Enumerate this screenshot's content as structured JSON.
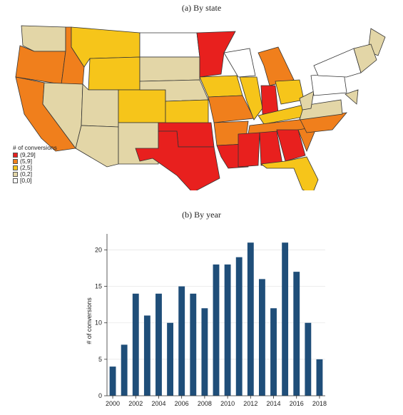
{
  "panel_a": {
    "title": "(a) By state",
    "legend": {
      "title": "# of conversions",
      "items": [
        {
          "label": "(9,29]",
          "color": "#e8201e"
        },
        {
          "label": "(5,9]",
          "color": "#f07f1c"
        },
        {
          "label": "(2,5]",
          "color": "#f6c51a"
        },
        {
          "label": "(0,2]",
          "color": "#e3d6a7"
        },
        {
          "label": "[0,0]",
          "color": "#ffffff"
        }
      ]
    }
  },
  "panel_b": {
    "title": "(b) By year"
  },
  "chart_data": [
    {
      "type": "choropleth",
      "title": "(a) By state",
      "legend_title": "# of conversions",
      "bins": [
        "(9,29]",
        "(5,9]",
        "(2,5]",
        "(0,2]",
        "[0,0]"
      ],
      "bin_colors": [
        "#e8201e",
        "#f07f1c",
        "#f6c51a",
        "#e3d6a7",
        "#ffffff"
      ],
      "states": {
        "WA": "(0,2]",
        "OR": "(5,9]",
        "CA": "(5,9]",
        "ID": "(5,9]",
        "NV": "(0,2]",
        "MT": "(2,5]",
        "WY": "(2,5]",
        "UT": "(0,2]",
        "AZ": "(0,2]",
        "CO": "(2,5]",
        "NM": "(0,2]",
        "ND": "[0,0]",
        "SD": "(0,2]",
        "NE": "(0,2]",
        "KS": "(2,5]",
        "OK": "(9,29]",
        "TX": "(9,29]",
        "MN": "(9,29]",
        "IA": "(2,5]",
        "MO": "(5,9]",
        "AR": "(5,9]",
        "LA": "(9,29]",
        "WI": "[0,0]",
        "IL": "(2,5]",
        "MI": "(5,9]",
        "IN": "(9,29]",
        "OH": "(2,5]",
        "KY": "(2,5]",
        "TN": "(5,9]",
        "MS": "(9,29]",
        "AL": "(9,29]",
        "GA": "(9,29]",
        "FL": "(2,5]",
        "SC": "(5,9]",
        "NC": "(5,9]",
        "VA": "(0,2]",
        "WV": "(0,2]",
        "PA": "[0,0]",
        "NY": "[0,0]",
        "ME": "(0,2]",
        "NE_states": "(0,2]",
        "MD": "(0,2]"
      }
    },
    {
      "type": "bar",
      "title": "(b) By year",
      "xlabel": "",
      "ylabel": "# of conversions",
      "color": "#1f4e79",
      "ylim": [
        0,
        22
      ],
      "yticks": [
        0,
        5,
        10,
        15,
        20
      ],
      "xticks": [
        2000,
        2002,
        2004,
        2006,
        2008,
        2010,
        2012,
        2014,
        2016,
        2018
      ],
      "categories": [
        2000,
        2001,
        2002,
        2003,
        2004,
        2005,
        2006,
        2007,
        2008,
        2009,
        2010,
        2011,
        2012,
        2013,
        2014,
        2015,
        2016,
        2017,
        2018
      ],
      "values": [
        4,
        7,
        14,
        11,
        14,
        10,
        15,
        14,
        12,
        18,
        18,
        19,
        21,
        16,
        12,
        21,
        17,
        10,
        5
      ]
    }
  ]
}
